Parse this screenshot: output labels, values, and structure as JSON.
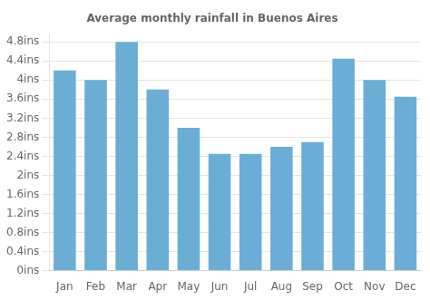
{
  "chart_data": {
    "type": "bar",
    "title": "Average monthly rainfall in Buenos Aires",
    "categories": [
      "Jan",
      "Feb",
      "Mar",
      "Apr",
      "May",
      "Jun",
      "Jul",
      "Aug",
      "Sep",
      "Oct",
      "Nov",
      "Dec"
    ],
    "values": [
      4.2,
      4.0,
      4.8,
      3.8,
      3.0,
      2.45,
      2.45,
      2.6,
      2.7,
      4.45,
      4.0,
      3.65
    ],
    "color": "#6aaed6",
    "ylim": [
      0,
      4.95
    ],
    "yticks": [
      {
        "value": 0,
        "label": "0ins"
      },
      {
        "value": 0.4,
        "label": "0.4ins"
      },
      {
        "value": 0.8,
        "label": "0.8ins"
      },
      {
        "value": 1.2,
        "label": "1.2ins"
      },
      {
        "value": 1.6,
        "label": "1.6ins"
      },
      {
        "value": 2.0,
        "label": "2ins"
      },
      {
        "value": 2.4,
        "label": "2.4ins"
      },
      {
        "value": 2.8,
        "label": "2.8ins"
      },
      {
        "value": 3.2,
        "label": "3.2ins"
      },
      {
        "value": 3.6,
        "label": "3.6ins"
      },
      {
        "value": 4.0,
        "label": "4ins"
      },
      {
        "value": 4.4,
        "label": "4.4ins"
      },
      {
        "value": 4.8,
        "label": "4.8ins"
      }
    ],
    "grid": true
  }
}
